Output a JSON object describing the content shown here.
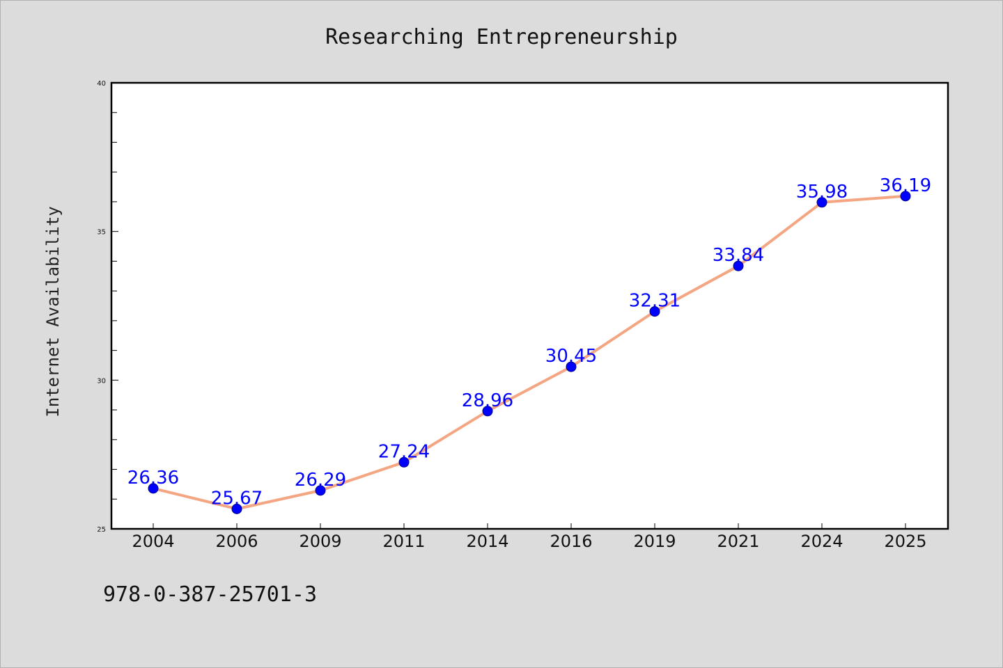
{
  "chart_data": {
    "type": "line",
    "title": "Researching Entrepreneurship",
    "xlabel": "",
    "ylabel": "Internet Availability",
    "categories": [
      "2004",
      "2006",
      "2009",
      "2011",
      "2014",
      "2016",
      "2019",
      "2021",
      "2024",
      "2025"
    ],
    "series": [
      {
        "values": [
          26.36,
          25.67,
          26.29,
          27.24,
          28.96,
          30.45,
          32.31,
          33.84,
          35.98,
          36.19
        ],
        "labels": [
          "26.36",
          "25.67",
          "26.29",
          "27.24",
          "28.96",
          "30.45",
          "32.31",
          "33.84",
          "35.98",
          "36.19"
        ],
        "line_color": "#f4a582",
        "marker_color": "#0000ff",
        "label_color": "#0000ff"
      }
    ],
    "ylim": [
      25,
      40
    ],
    "yticks": [
      "25",
      "30",
      "35",
      "40"
    ],
    "grid": false,
    "legend": "none"
  },
  "footnote": "978-0-387-25701-3",
  "colors": {
    "background": "#dcdcdc",
    "plot_area": "#ffffff",
    "axis": "#000000"
  }
}
